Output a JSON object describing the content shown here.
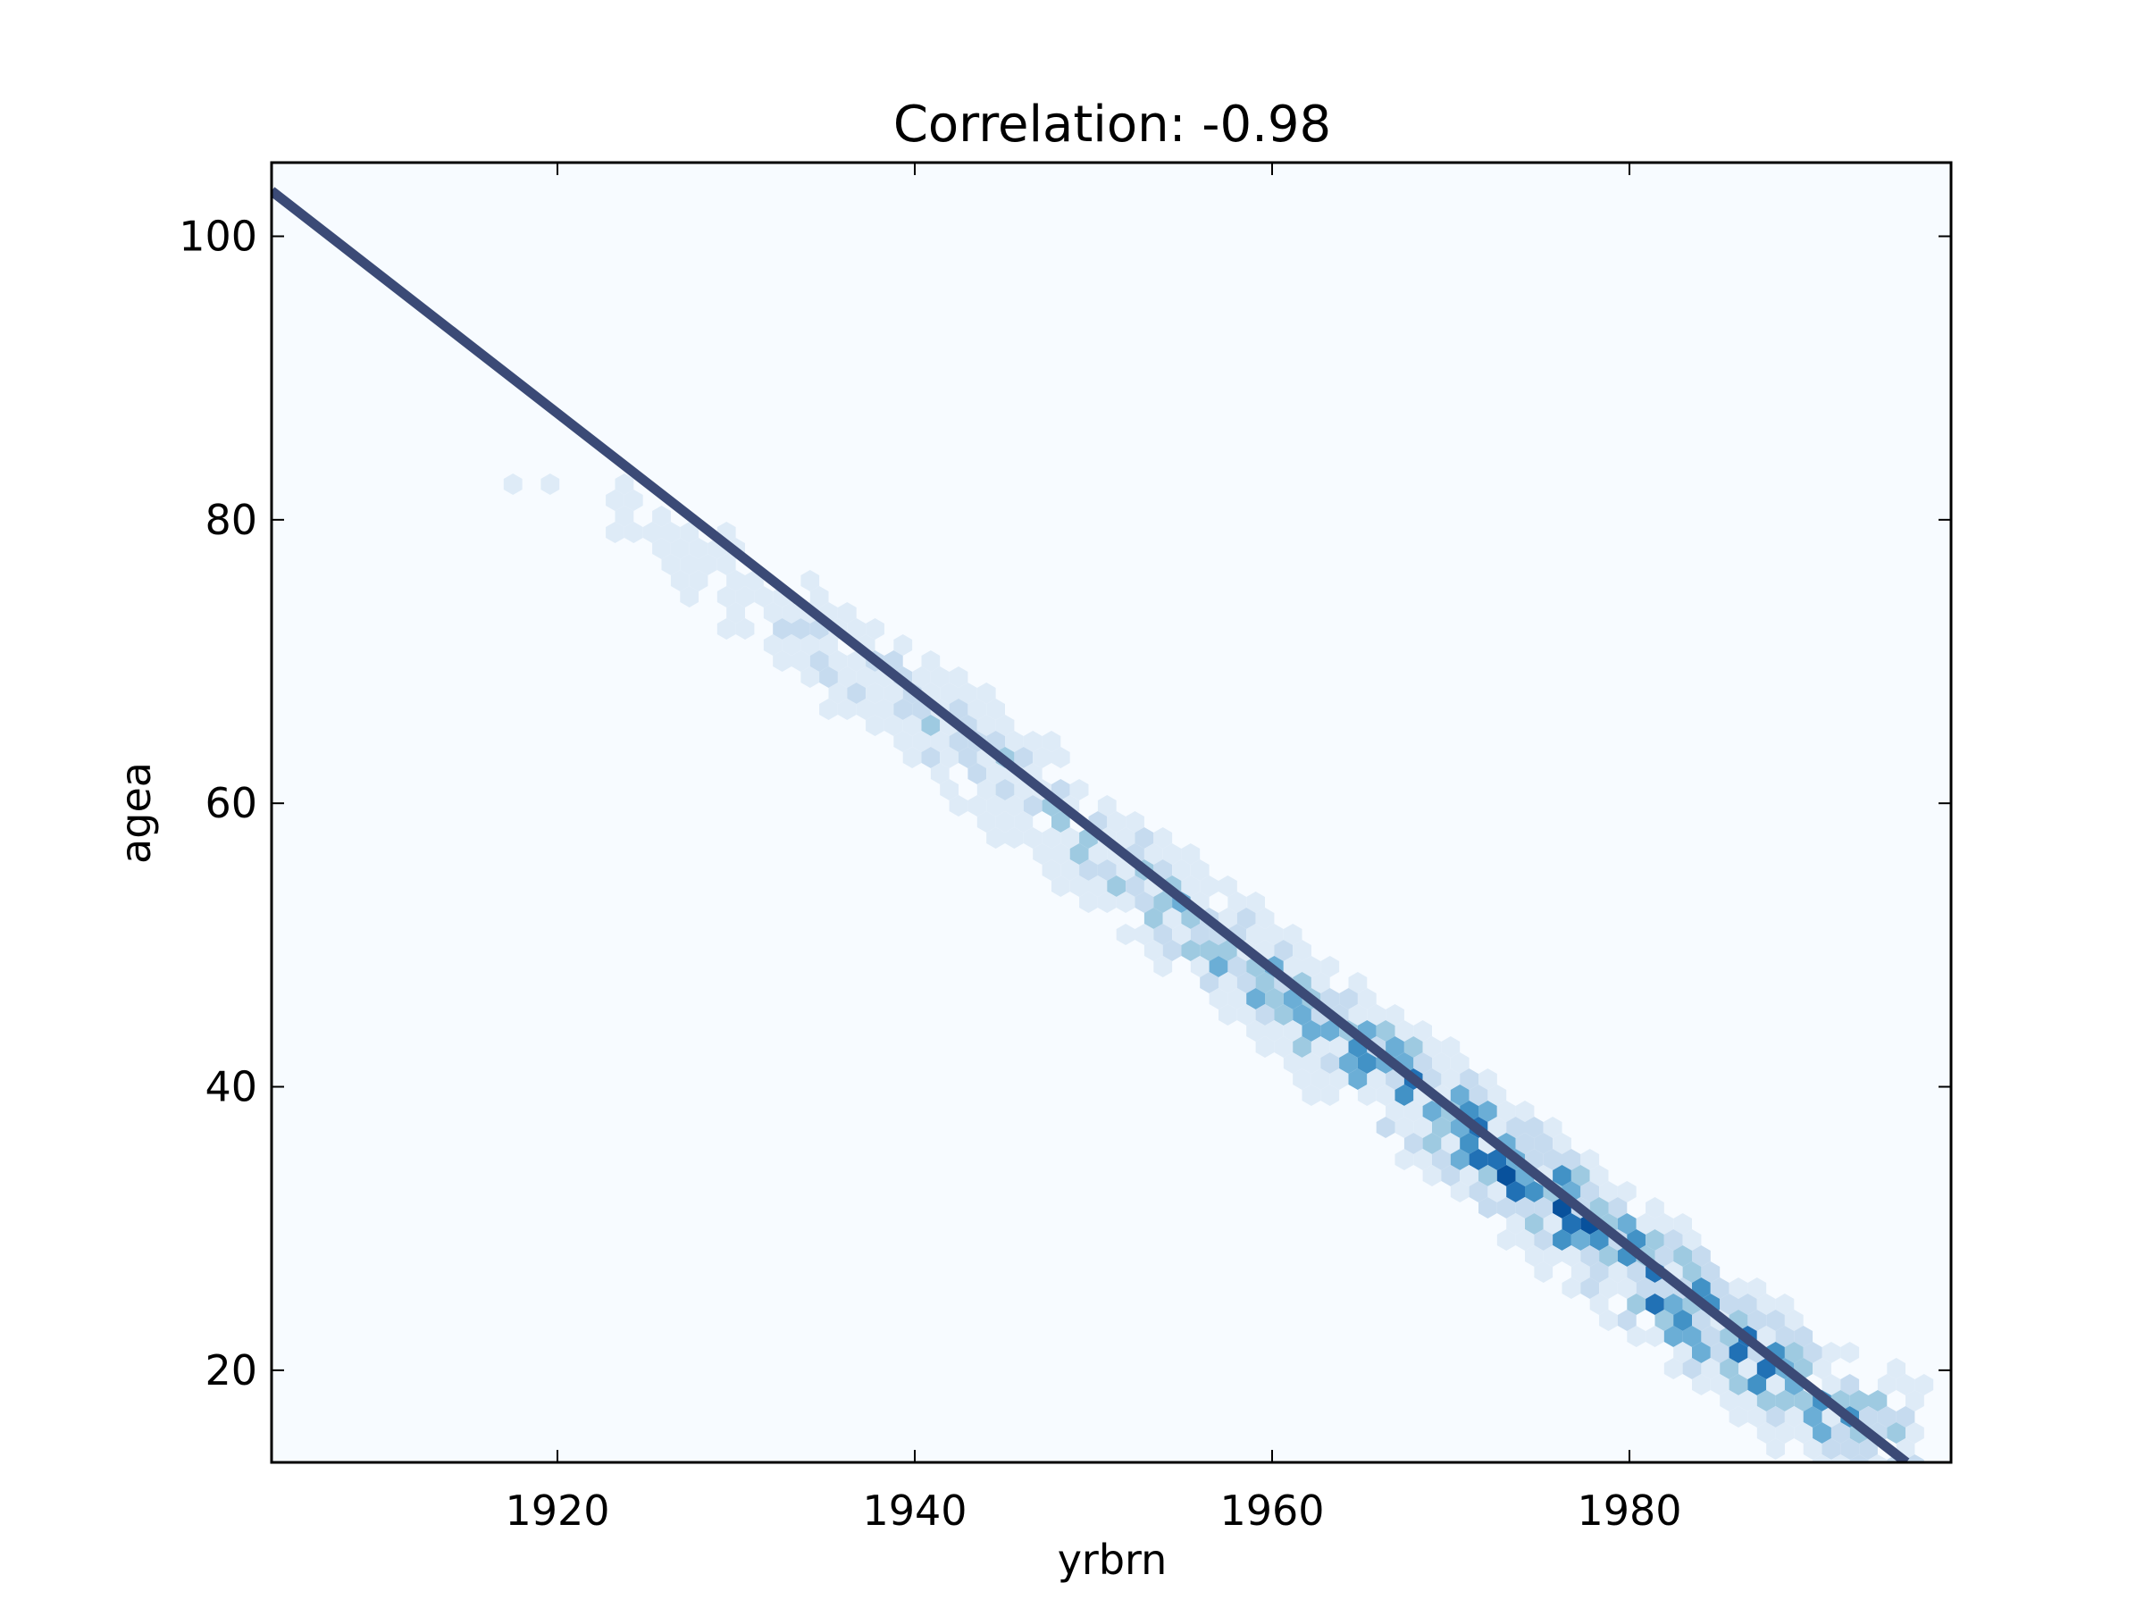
{
  "chart_data": {
    "type": "heatmap",
    "subtype": "hexbin-with-fit-line",
    "title": "Correlation: -0.98",
    "xlabel": "yrbrn",
    "ylabel": "agea",
    "xlim": [
      1904,
      1998
    ],
    "ylim": [
      13.5,
      105.2
    ],
    "xticks": [
      1920,
      1940,
      1960,
      1980
    ],
    "yticks": [
      20,
      40,
      60,
      80,
      100
    ],
    "xtick_labels": [
      "1920",
      "1940",
      "1960",
      "1980"
    ],
    "ytick_labels": [
      "20",
      "40",
      "60",
      "80",
      "100"
    ],
    "grid": false,
    "legend": "none",
    "colormap": "Blues",
    "background_color": "#f7fbff",
    "fit_line": {
      "color": "#3b4a76",
      "points": [
        [
          1904,
          103.2
        ],
        [
          1995.5,
          13.5
        ]
      ]
    },
    "density_band": {
      "description_points": [
        [
          1912,
          88.5,
          0.04
        ],
        [
          1916,
          84.5,
          0.05
        ],
        [
          1920,
          82,
          0.06
        ],
        [
          1924,
          80,
          0.1
        ],
        [
          1928,
          77,
          0.14
        ],
        [
          1932,
          73,
          0.18
        ],
        [
          1936,
          70,
          0.22
        ],
        [
          1940,
          67,
          0.28
        ],
        [
          1944,
          63,
          0.33
        ],
        [
          1948,
          59,
          0.36
        ],
        [
          1952,
          55,
          0.4
        ],
        [
          1956,
          51,
          0.45
        ],
        [
          1960,
          47,
          0.5
        ],
        [
          1964,
          43,
          0.55
        ],
        [
          1968,
          39.5,
          0.62
        ],
        [
          1972,
          35.5,
          0.68
        ],
        [
          1976,
          31.5,
          0.74
        ],
        [
          1980,
          27.5,
          0.8
        ],
        [
          1984,
          24,
          0.75
        ],
        [
          1988,
          20,
          0.65
        ],
        [
          1992,
          17,
          0.5
        ],
        [
          1996,
          15,
          0.3
        ]
      ]
    }
  }
}
